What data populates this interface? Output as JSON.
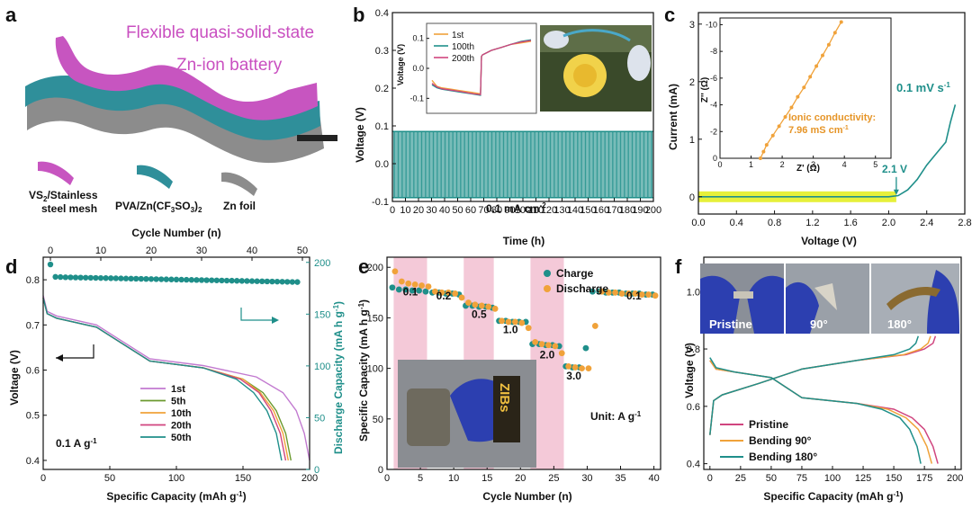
{
  "panels": {
    "a": {
      "label": "a",
      "title1": "Flexible quasi-solid-state",
      "title2": "Zn-ion battery",
      "layer_labels": [
        {
          "t1": "VS",
          "sub": "2",
          "t2": "/Stainless",
          "t3": "steel mesh"
        },
        {
          "t1": "PVA/Zn(CF",
          "sub": "3",
          "t2": "SO",
          "sub2": "3",
          "t3": ")",
          "sub3": "2"
        },
        {
          "t1": "Zn foil"
        }
      ],
      "colors": {
        "vs2": "#c755c0",
        "pva": "#2f8f9a",
        "zn": "#8c8c8c"
      }
    },
    "b": {
      "label": "b",
      "ylabel": "Voltage (V)",
      "xlabel": "Time (h)",
      "annotation": "0.1 mA cm",
      "annotation_sup": "-2",
      "inset_ylabel": "Voltage (V)",
      "inset_legend": [
        "1st",
        "100th",
        "200th"
      ]
    },
    "c": {
      "label": "c",
      "ylabel": "Current (mA)",
      "xlabel": "Voltage (V)",
      "rate": "0.1 mV s",
      "rate_sup": "-1",
      "onset": "2.1 V",
      "inset_xlabel": "Z' (Ω)",
      "inset_ylabel": "Z'' (Ω)",
      "inset_text1": "Ionic conductivity:",
      "inset_text2": "7.96 mS cm",
      "inset_text2_sup": "-1"
    },
    "d": {
      "label": "d",
      "xlabel": "Specific Capacity (mAh g",
      "xlabel_sup": "-1",
      "xlabel_end": ")",
      "ylabel": "Voltage (V)",
      "top_xlabel": "Cycle Number (n)",
      "right_ylabel": "Discharge Capacity (mA h g",
      "right_ylabel_sup": "-1",
      "right_ylabel_end": ")",
      "rate": "0.1 A g",
      "rate_sup": "-1",
      "legend": [
        "1st",
        "5th",
        "10th",
        "20th",
        "50th"
      ]
    },
    "e": {
      "label": "e",
      "xlabel": "Cycle Number (n)",
      "ylabel": "Specific Capacity (mA h g",
      "ylabel_sup": "-1",
      "ylabel_end": ")",
      "legend": [
        "Charge",
        "Discharge"
      ],
      "rate_labels": [
        "0.1",
        "0.2",
        "0.5",
        "1.0",
        "2.0",
        "3.0",
        "0.1"
      ],
      "unit": "Unit: A g",
      "unit_sup": "-1",
      "photo_text": "ZIBs"
    },
    "f": {
      "label": "f",
      "xlabel": "Specific Capacity (mAh g",
      "xlabel_sup": "-1",
      "xlabel_end": ")",
      "ylabel": "Voltage (V)",
      "photo_labels": [
        "Pristine",
        "90°",
        "180°"
      ],
      "legend": [
        "Pristine",
        "Bending 90°",
        "Bending 180°"
      ]
    }
  },
  "colors": {
    "teal": "#1f8f8a",
    "orange": "#f0a23a",
    "pink": "#d0457f",
    "green": "#6b9a2f",
    "purple": "#c27ad0",
    "highlight": "#e6f03a"
  },
  "chart_data": [
    {
      "panel": "b",
      "type": "line",
      "xlim": [
        0,
        200
      ],
      "ylim": [
        -0.1,
        0.4
      ],
      "xticks": [
        0,
        10,
        20,
        30,
        40,
        50,
        60,
        70,
        80,
        90,
        100,
        110,
        120,
        130,
        140,
        150,
        160,
        170,
        180,
        190,
        200
      ],
      "yticks": [
        -0.1,
        0.0,
        0.1,
        0.2,
        0.3,
        0.4
      ],
      "series": [
        {
          "x": [
            0,
            200
          ],
          "y_max": 0.085,
          "y_min": -0.09,
          "description_values": "square-wave cycling between -0.09 and 0.085 V"
        }
      ],
      "inset": {
        "ylim": [
          -0.15,
          0.15
        ],
        "yticks": [
          -0.1,
          0.0,
          0.1
        ],
        "series": [
          {
            "name": "1st",
            "x": [
              0,
              5,
              10,
              20,
              30,
              40,
              49,
              50,
              51,
              60,
              70,
              80,
              90,
              100
            ],
            "y": [
              -0.04,
              -0.06,
              -0.065,
              -0.07,
              -0.075,
              -0.08,
              -0.085,
              0.04,
              0.045,
              0.06,
              0.07,
              0.08,
              0.085,
              0.09
            ]
          },
          {
            "name": "100th",
            "x": [
              0,
              5,
              10,
              20,
              30,
              40,
              49,
              50,
              51,
              60,
              70,
              80,
              90,
              100
            ],
            "y": [
              -0.055,
              -0.065,
              -0.07,
              -0.075,
              -0.08,
              -0.085,
              -0.09,
              0.04,
              0.045,
              0.06,
              0.07,
              0.08,
              0.09,
              0.095
            ]
          },
          {
            "name": "200th",
            "x": [
              0,
              5,
              10,
              20,
              30,
              40,
              49,
              50,
              51,
              60,
              70,
              80,
              90,
              100
            ],
            "y": [
              -0.05,
              -0.062,
              -0.068,
              -0.073,
              -0.078,
              -0.084,
              -0.088,
              0.04,
              0.045,
              0.06,
              0.07,
              0.08,
              0.088,
              0.093
            ]
          }
        ]
      }
    },
    {
      "panel": "c",
      "type": "line",
      "xlim": [
        0,
        2.8
      ],
      "ylim": [
        -0.3,
        3.2
      ],
      "xticks": [
        0.0,
        0.4,
        0.8,
        1.2,
        1.6,
        2.0,
        2.4,
        2.8
      ],
      "yticks": [
        0,
        1,
        2,
        3
      ],
      "series": [
        {
          "x": [
            0,
            0.5,
            1.0,
            1.5,
            2.0,
            2.1,
            2.2,
            2.3,
            2.4,
            2.5,
            2.6,
            2.65,
            2.7
          ],
          "y": [
            0,
            0,
            0,
            0,
            0,
            0.02,
            0.12,
            0.3,
            0.55,
            0.75,
            0.95,
            1.3,
            1.6
          ]
        }
      ],
      "inset": {
        "xlim": [
          0,
          5.5
        ],
        "ylim": [
          0,
          -10.5
        ],
        "xticks": [
          0,
          1,
          2,
          3,
          4,
          5
        ],
        "yticks": [
          0,
          -2,
          -4,
          -6,
          -8,
          -10
        ],
        "series": [
          {
            "x": [
              1.3,
              1.4,
              1.5,
              1.7,
              1.9,
              2.1,
              2.3,
              2.5,
              2.7,
              2.9,
              3.1,
              3.3,
              3.5,
              3.7,
              3.9
            ],
            "y": [
              0,
              -0.5,
              -1.0,
              -1.7,
              -2.4,
              -3.1,
              -3.8,
              -4.6,
              -5.3,
              -6.1,
              -6.9,
              -7.7,
              -8.5,
              -9.4,
              -10.2
            ]
          }
        ]
      }
    },
    {
      "panel": "d",
      "type": "line",
      "xlim": [
        0,
        200
      ],
      "ylim": [
        0.38,
        0.85
      ],
      "xticks": [
        0,
        50,
        100,
        150,
        200
      ],
      "yticks": [
        0.4,
        0.5,
        0.6,
        0.7,
        0.8
      ],
      "top_xlim": [
        0,
        50
      ],
      "top_xticks": [
        0,
        10,
        20,
        30,
        40,
        50
      ],
      "right_ylim": [
        0,
        205
      ],
      "right_yticks": [
        0,
        50,
        100,
        150,
        200
      ],
      "series": [
        {
          "name": "1st",
          "x": [
            0,
            3,
            10,
            40,
            80,
            120,
            160,
            180,
            190,
            196,
            200
          ],
          "y": [
            0.765,
            0.73,
            0.72,
            0.7,
            0.625,
            0.61,
            0.585,
            0.55,
            0.51,
            0.46,
            0.4
          ]
        },
        {
          "name": "5th",
          "x": [
            0,
            3,
            10,
            40,
            80,
            120,
            150,
            165,
            175,
            182,
            186
          ],
          "y": [
            0.76,
            0.725,
            0.715,
            0.695,
            0.62,
            0.605,
            0.58,
            0.55,
            0.51,
            0.46,
            0.4
          ]
        },
        {
          "name": "10th",
          "x": [
            0,
            3,
            10,
            40,
            80,
            120,
            150,
            163,
            173,
            180,
            184
          ],
          "y": [
            0.76,
            0.725,
            0.715,
            0.695,
            0.62,
            0.605,
            0.58,
            0.55,
            0.51,
            0.46,
            0.4
          ]
        },
        {
          "name": "20th",
          "x": [
            0,
            3,
            10,
            40,
            80,
            120,
            148,
            162,
            171,
            178,
            182
          ],
          "y": [
            0.76,
            0.725,
            0.715,
            0.695,
            0.62,
            0.605,
            0.58,
            0.55,
            0.51,
            0.46,
            0.4
          ]
        },
        {
          "name": "50th",
          "x": [
            0,
            3,
            10,
            40,
            80,
            120,
            145,
            158,
            168,
            175,
            179
          ],
          "y": [
            0.76,
            0.725,
            0.715,
            0.695,
            0.62,
            0.605,
            0.58,
            0.55,
            0.51,
            0.46,
            0.4
          ]
        }
      ],
      "capacity_series": {
        "cycle": [
          1,
          2,
          3,
          4,
          5,
          6,
          7,
          8,
          9,
          10,
          11,
          12,
          13,
          14,
          15,
          16,
          17,
          18,
          19,
          20,
          21,
          22,
          23,
          24,
          25,
          26,
          27,
          28,
          29,
          30,
          31,
          32,
          33,
          34,
          35,
          36,
          37,
          38,
          39,
          40,
          41,
          42,
          43,
          44,
          45,
          46,
          47,
          48,
          49,
          50
        ],
        "capacity": [
          198,
          186,
          185.8,
          185.6,
          185.5,
          185.4,
          185.3,
          185.2,
          185.1,
          185,
          184.9,
          184.8,
          184.7,
          184.6,
          184.5,
          184.4,
          184.3,
          184.2,
          184.1,
          184,
          183.9,
          183.8,
          183.7,
          183.6,
          183.5,
          183.4,
          183.3,
          183.2,
          183.1,
          183,
          182.9,
          182.8,
          182.7,
          182.6,
          182.5,
          182.4,
          182.3,
          182.2,
          182.1,
          182,
          181.9,
          181.8,
          181.7,
          181.6,
          181.5,
          181.4,
          181.3,
          181.2,
          181.1,
          181
        ]
      }
    },
    {
      "panel": "e",
      "type": "scatter",
      "xlim": [
        0,
        41
      ],
      "ylim": [
        0,
        210
      ],
      "xticks": [
        0,
        5,
        10,
        15,
        20,
        25,
        30,
        35,
        40
      ],
      "yticks": [
        0,
        50,
        100,
        150,
        200
      ],
      "shaded_ranges": [
        [
          1,
          6
        ],
        [
          11.5,
          16
        ],
        [
          21.5,
          26.5
        ]
      ],
      "series": [
        {
          "name": "Charge",
          "x": [
            1,
            2,
            3,
            4,
            5,
            6,
            7,
            8,
            9,
            10,
            11,
            12,
            13,
            14,
            15,
            16,
            17,
            18,
            19,
            20,
            21,
            22,
            23,
            24,
            25,
            26,
            27,
            28,
            29,
            30,
            31,
            32,
            33,
            34,
            35,
            36,
            37,
            38,
            39,
            40
          ],
          "y": [
            180,
            178,
            178,
            177,
            177,
            176,
            175,
            175,
            174,
            174,
            173,
            162,
            162,
            161,
            161,
            160,
            147,
            147,
            146,
            146,
            146,
            124,
            124,
            123,
            123,
            122,
            102,
            101,
            101,
            120,
            176,
            176,
            175,
            175,
            175,
            174,
            174,
            174,
            173,
            173
          ]
        },
        {
          "name": "Discharge",
          "x": [
            1,
            2,
            3,
            4,
            5,
            6,
            7,
            8,
            9,
            10,
            11,
            12,
            13,
            14,
            15,
            16,
            17,
            18,
            19,
            20,
            21,
            22,
            23,
            24,
            25,
            26,
            27,
            28,
            29,
            30,
            31,
            32,
            33,
            34,
            35,
            36,
            37,
            38,
            39,
            40
          ],
          "y": [
            196,
            186,
            184,
            183,
            182,
            181,
            176,
            175,
            175,
            174,
            170,
            165,
            163,
            162,
            161,
            159,
            147,
            146,
            146,
            145,
            140,
            126,
            124,
            123,
            122,
            115,
            102,
            101,
            100,
            100,
            142,
            176,
            175,
            175,
            174,
            174,
            174,
            173,
            173,
            172
          ]
        }
      ]
    },
    {
      "panel": "f",
      "type": "line",
      "xlim": [
        -5,
        205
      ],
      "ylim": [
        0.38,
        1.12
      ],
      "xticks": [
        0,
        25,
        50,
        75,
        100,
        125,
        150,
        175,
        200
      ],
      "yticks": [
        0.4,
        0.6,
        0.8,
        1.0
      ],
      "series": [
        {
          "name": "Pristine",
          "discharge_x": [
            0,
            5,
            20,
            50,
            75,
            120,
            150,
            165,
            175,
            182,
            186
          ],
          "discharge_y": [
            0.76,
            0.73,
            0.72,
            0.7,
            0.63,
            0.61,
            0.59,
            0.56,
            0.52,
            0.46,
            0.4
          ],
          "charge_x": [
            0,
            3,
            10,
            40,
            75,
            120,
            160,
            175,
            182,
            184
          ],
          "charge_y": [
            0.5,
            0.62,
            0.64,
            0.68,
            0.73,
            0.76,
            0.78,
            0.8,
            0.82,
            0.845
          ]
        },
        {
          "name": "Bending 90°",
          "discharge_x": [
            0,
            5,
            20,
            50,
            75,
            120,
            145,
            160,
            170,
            177,
            181
          ],
          "discharge_y": [
            0.76,
            0.73,
            0.72,
            0.7,
            0.63,
            0.61,
            0.59,
            0.56,
            0.52,
            0.46,
            0.4
          ],
          "charge_x": [
            0,
            3,
            10,
            40,
            75,
            120,
            158,
            172,
            178,
            180
          ],
          "charge_y": [
            0.5,
            0.62,
            0.64,
            0.68,
            0.73,
            0.76,
            0.78,
            0.8,
            0.82,
            0.845
          ]
        },
        {
          "name": "Bending 180°",
          "discharge_x": [
            0,
            5,
            20,
            50,
            75,
            120,
            140,
            155,
            163,
            169,
            172
          ],
          "discharge_y": [
            0.77,
            0.735,
            0.72,
            0.7,
            0.63,
            0.61,
            0.59,
            0.56,
            0.52,
            0.46,
            0.4
          ],
          "charge_x": [
            0,
            3,
            10,
            40,
            75,
            120,
            150,
            163,
            168,
            170
          ],
          "charge_y": [
            0.5,
            0.62,
            0.64,
            0.68,
            0.73,
            0.76,
            0.78,
            0.8,
            0.82,
            0.845
          ]
        }
      ]
    }
  ]
}
